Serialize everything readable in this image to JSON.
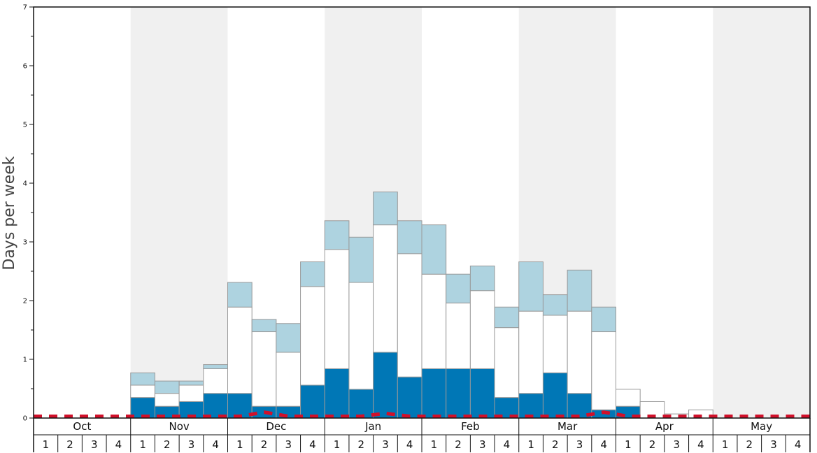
{
  "chart_data": {
    "type": "bar",
    "ylabel": "Days per week",
    "ylim": [
      0,
      7
    ],
    "yticks": [
      "0",
      "1",
      "2",
      "3",
      "4",
      "5",
      "6",
      "7"
    ],
    "months": [
      "Oct",
      "Nov",
      "Dec",
      "Jan",
      "Feb",
      "Mar",
      "Apr",
      "May"
    ],
    "weeks": [
      "1",
      "2",
      "3",
      "4"
    ],
    "shaded_months": [
      "Nov",
      "Jan",
      "Mar",
      "May"
    ],
    "stacked": true,
    "series": [
      {
        "color": "#0077b6",
        "values": [
          0,
          0,
          0,
          0,
          0.35,
          0.2,
          0.28,
          0.42,
          0.42,
          0.2,
          0.2,
          0.56,
          0.84,
          0.49,
          1.12,
          0.7,
          0.84,
          0.84,
          0.84,
          0.35,
          0.42,
          0.77,
          0.42,
          0.14,
          0.2,
          0,
          0,
          0,
          0,
          0,
          0,
          0
        ]
      },
      {
        "color": "#ffffff",
        "values": [
          0,
          0,
          0,
          0,
          0.21,
          0.22,
          0.28,
          0.42,
          1.47,
          1.27,
          0.92,
          1.68,
          2.03,
          1.82,
          2.17,
          2.1,
          1.61,
          1.12,
          1.33,
          1.19,
          1.4,
          0.98,
          1.4,
          1.33,
          0.29,
          0.28,
          0.07,
          0.14,
          0,
          0,
          0,
          0
        ]
      },
      {
        "color": "#aed3e0",
        "values": [
          0,
          0,
          0,
          0,
          0.21,
          0.21,
          0.07,
          0.07,
          0.42,
          0.21,
          0.49,
          0.42,
          0.49,
          0.77,
          0.56,
          0.56,
          0.84,
          0.49,
          0.42,
          0.35,
          0.84,
          0.35,
          0.7,
          0.42,
          0,
          0,
          0,
          0,
          0,
          0,
          0,
          0
        ]
      }
    ],
    "reference_line": {
      "color": "#d0102a",
      "style": "dashed",
      "values": [
        0.03,
        0.03,
        0.03,
        0.03,
        0.03,
        0.03,
        0.03,
        0.03,
        0.03,
        0.1,
        0.03,
        0.03,
        0.03,
        0.03,
        0.08,
        0.03,
        0.03,
        0.03,
        0.03,
        0.03,
        0.03,
        0.03,
        0.03,
        0.1,
        0.03,
        0.03,
        0.03,
        0.03,
        0.03,
        0.03,
        0.03,
        0.03
      ]
    }
  }
}
